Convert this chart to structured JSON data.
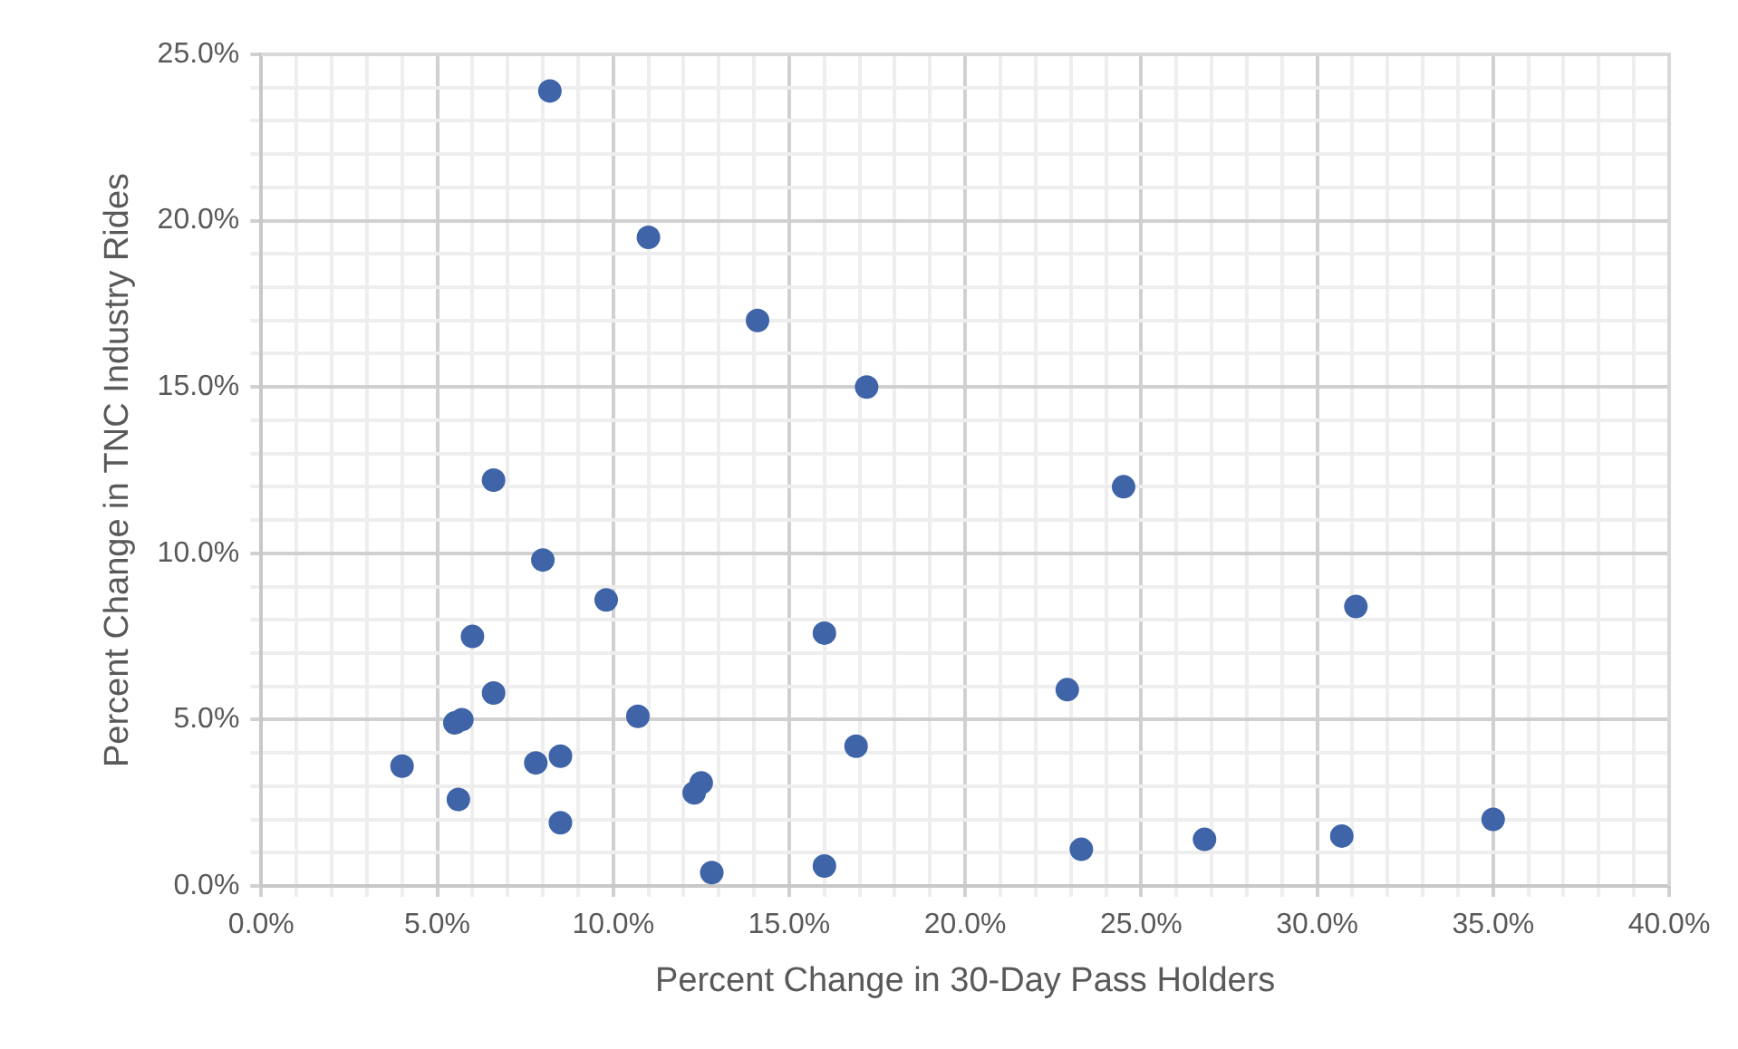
{
  "chart_data": {
    "type": "scatter",
    "xlabel": "Percent Change in 30-Day Pass Holders",
    "ylabel": "Percent Change in TNC Industry Rides",
    "series": [
      {
        "color": "#3f64a8",
        "x": [
          8.2,
          11.0,
          14.1,
          17.2,
          6.6,
          24.5,
          8.0,
          9.8,
          31.1,
          6.0,
          16.0,
          6.6,
          22.9,
          5.5,
          5.7,
          10.7,
          16.9,
          4.0,
          7.8,
          8.5,
          5.6,
          12.3,
          12.5,
          8.5,
          12.8,
          16.0,
          23.3,
          26.8,
          30.7,
          35.0
        ],
        "values": [
          23.9,
          19.5,
          17.0,
          15.0,
          12.2,
          12.0,
          9.8,
          8.6,
          8.4,
          7.5,
          7.6,
          5.8,
          5.9,
          4.9,
          5.0,
          5.1,
          4.2,
          3.6,
          3.7,
          3.9,
          2.6,
          2.8,
          3.1,
          1.9,
          0.4,
          0.6,
          1.1,
          1.4,
          1.5,
          2.0
        ]
      }
    ],
    "xlim": [
      0,
      40
    ],
    "ylim": [
      0,
      25
    ],
    "xticks": [
      {
        "value": 0,
        "label": "0.0%"
      },
      {
        "value": 1,
        "label": null
      },
      {
        "value": 2,
        "label": null
      },
      {
        "value": 3,
        "label": null
      },
      {
        "value": 4,
        "label": null
      },
      {
        "value": 5,
        "label": "5.0%"
      },
      {
        "value": 6,
        "label": null
      },
      {
        "value": 7,
        "label": null
      },
      {
        "value": 8,
        "label": null
      },
      {
        "value": 9,
        "label": null
      },
      {
        "value": 10,
        "label": "10.0%"
      },
      {
        "value": 11,
        "label": null
      },
      {
        "value": 12,
        "label": null
      },
      {
        "value": 13,
        "label": null
      },
      {
        "value": 14,
        "label": null
      },
      {
        "value": 15,
        "label": "15.0%"
      },
      {
        "value": 16,
        "label": null
      },
      {
        "value": 17,
        "label": null
      },
      {
        "value": 18,
        "label": null
      },
      {
        "value": 19,
        "label": null
      },
      {
        "value": 20,
        "label": "20.0%"
      },
      {
        "value": 21,
        "label": null
      },
      {
        "value": 22,
        "label": null
      },
      {
        "value": 23,
        "label": null
      },
      {
        "value": 24,
        "label": null
      },
      {
        "value": 25,
        "label": "25.0%"
      },
      {
        "value": 26,
        "label": null
      },
      {
        "value": 27,
        "label": null
      },
      {
        "value": 28,
        "label": null
      },
      {
        "value": 29,
        "label": null
      },
      {
        "value": 30,
        "label": "30.0%"
      },
      {
        "value": 31,
        "label": null
      },
      {
        "value": 32,
        "label": null
      },
      {
        "value": 33,
        "label": null
      },
      {
        "value": 34,
        "label": null
      },
      {
        "value": 35,
        "label": "35.0%"
      },
      {
        "value": 36,
        "label": null
      },
      {
        "value": 37,
        "label": null
      },
      {
        "value": 38,
        "label": null
      },
      {
        "value": 39,
        "label": null
      },
      {
        "value": 40,
        "label": "40.0%"
      }
    ],
    "yticks": [
      {
        "value": 0,
        "label": "0.0%"
      },
      {
        "value": 1,
        "label": null
      },
      {
        "value": 2,
        "label": null
      },
      {
        "value": 3,
        "label": null
      },
      {
        "value": 4,
        "label": null
      },
      {
        "value": 5,
        "label": "5.0%"
      },
      {
        "value": 6,
        "label": null
      },
      {
        "value": 7,
        "label": null
      },
      {
        "value": 8,
        "label": null
      },
      {
        "value": 9,
        "label": null
      },
      {
        "value": 10,
        "label": "10.0%"
      },
      {
        "value": 11,
        "label": null
      },
      {
        "value": 12,
        "label": null
      },
      {
        "value": 13,
        "label": null
      },
      {
        "value": 14,
        "label": null
      },
      {
        "value": 15,
        "label": "15.0%"
      },
      {
        "value": 16,
        "label": null
      },
      {
        "value": 17,
        "label": null
      },
      {
        "value": 18,
        "label": null
      },
      {
        "value": 19,
        "label": null
      },
      {
        "value": 20,
        "label": "20.0%"
      },
      {
        "value": 21,
        "label": null
      },
      {
        "value": 22,
        "label": null
      },
      {
        "value": 23,
        "label": null
      },
      {
        "value": 24,
        "label": null
      },
      {
        "value": 25,
        "label": "25.0%"
      }
    ],
    "grid": true,
    "legend": false,
    "marker": "circle"
  }
}
